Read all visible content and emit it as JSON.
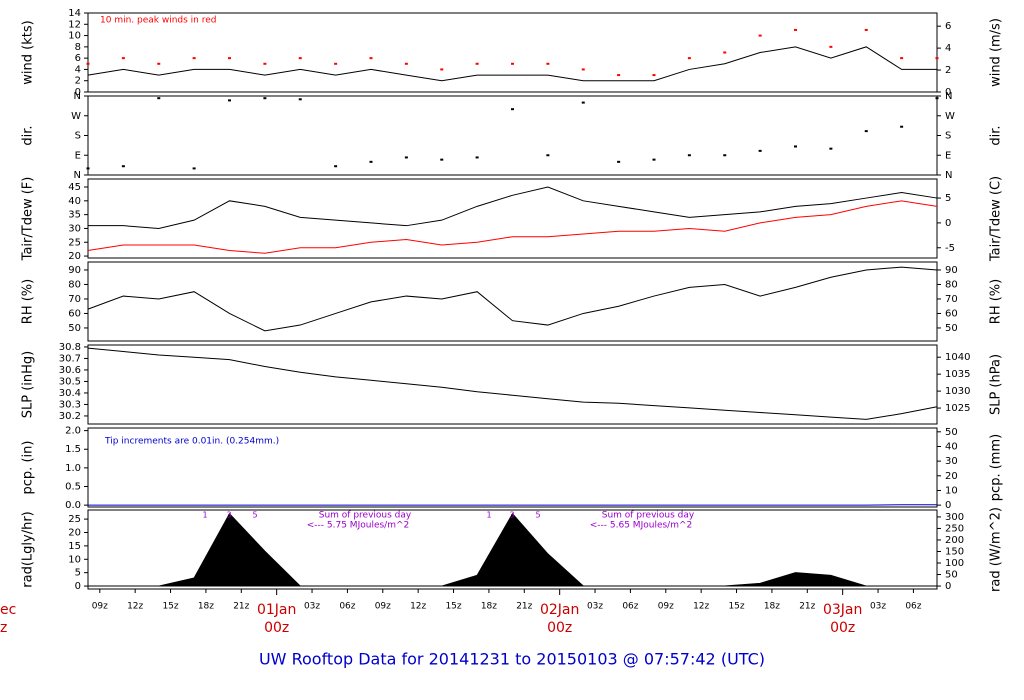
{
  "title": "UW Rooftop Data for 20141231  to  20150103 @ 07:57:42  (UTC)",
  "chart_data": [
    {
      "type": "line",
      "ylabel": "wind (kts)",
      "y2label": "wind (m/s)",
      "annotations": [
        "10 min. peak winds in red"
      ],
      "xlim": [
        8,
        80
      ],
      "x": [
        8,
        11,
        14,
        17,
        20,
        23,
        26,
        29,
        32,
        35,
        38,
        41,
        44,
        47,
        50,
        53,
        56,
        59,
        62,
        65,
        68,
        71,
        74,
        77,
        80
      ],
      "ylim": [
        0,
        14
      ],
      "yticks": [
        0,
        2,
        4,
        6,
        8,
        10,
        12,
        14
      ],
      "y2lim": [
        0,
        7.2
      ],
      "y2ticks": [
        0,
        2,
        4,
        6
      ],
      "series": [
        {
          "color": "#000000",
          "mode": "line",
          "values": [
            3,
            4,
            3,
            4,
            4,
            3,
            4,
            3,
            4,
            3,
            2,
            3,
            3,
            3,
            2,
            2,
            2,
            4,
            5,
            7,
            8,
            6,
            8,
            4,
            4
          ]
        },
        {
          "color": "#ff0000",
          "mode": "markers",
          "values": [
            5,
            6,
            5,
            6,
            6,
            5,
            6,
            5,
            6,
            5,
            4,
            5,
            5,
            5,
            4,
            3,
            3,
            6,
            7,
            10,
            11,
            8,
            11,
            6,
            6
          ]
        }
      ]
    },
    {
      "type": "scatter",
      "ylabel": "dir.",
      "y2label": "dir.",
      "xlim": [
        8,
        80
      ],
      "x": [
        8,
        11,
        14,
        17,
        20,
        23,
        26,
        29,
        32,
        35,
        38,
        41,
        44,
        47,
        50,
        53,
        56,
        59,
        62,
        65,
        68,
        71,
        74,
        77,
        80
      ],
      "ylim": [
        0,
        360
      ],
      "yticks": [
        {
          "value": 0,
          "label": "N"
        },
        {
          "value": 90,
          "label": "E"
        },
        {
          "value": 180,
          "label": "S"
        },
        {
          "value": 270,
          "label": "W"
        },
        {
          "value": 360,
          "label": "N"
        }
      ],
      "y2lim": [
        0,
        360
      ],
      "y2ticks": [
        {
          "value": 0,
          "label": "N"
        },
        {
          "value": 90,
          "label": "E"
        },
        {
          "value": 180,
          "label": "S"
        },
        {
          "value": 270,
          "label": "W"
        },
        {
          "value": 360,
          "label": "N"
        }
      ],
      "series": [
        {
          "color": "#000000",
          "mode": "markers",
          "values": [
            30,
            40,
            350,
            30,
            340,
            350,
            345,
            40,
            60,
            80,
            70,
            80,
            300,
            90,
            330,
            60,
            70,
            90,
            90,
            110,
            130,
            120,
            200,
            220,
            350
          ]
        }
      ]
    },
    {
      "type": "line",
      "ylabel": "Tair/Tdew (F)",
      "y2label": "Tair/Tdew (C)",
      "xlim": [
        8,
        80
      ],
      "x": [
        8,
        11,
        14,
        17,
        20,
        23,
        26,
        29,
        32,
        35,
        38,
        41,
        44,
        47,
        50,
        53,
        56,
        59,
        62,
        65,
        68,
        71,
        74,
        77,
        80
      ],
      "ylim": [
        19.3,
        47.9
      ],
      "yticks": [
        20,
        25,
        30,
        35,
        40,
        45
      ],
      "y2lim": [
        -7.06,
        8.83
      ],
      "y2ticks": [
        -5,
        0,
        5
      ],
      "series": [
        {
          "color": "#000000",
          "mode": "line",
          "values": [
            31,
            31,
            30,
            33,
            40,
            38,
            34,
            33,
            32,
            31,
            33,
            38,
            42,
            45,
            40,
            38,
            36,
            34,
            35,
            36,
            38,
            39,
            41,
            43,
            41
          ]
        },
        {
          "color": "#ff0000",
          "mode": "line",
          "values": [
            22,
            24,
            24,
            24,
            22,
            21,
            23,
            23,
            25,
            26,
            24,
            25,
            27,
            27,
            28,
            29,
            29,
            30,
            29,
            32,
            34,
            35,
            38,
            40,
            38
          ]
        }
      ]
    },
    {
      "type": "line",
      "ylabel": "RH (%)",
      "y2label": "RH (%)",
      "xlim": [
        8,
        80
      ],
      "x": [
        8,
        11,
        14,
        17,
        20,
        23,
        26,
        29,
        32,
        35,
        38,
        41,
        44,
        47,
        50,
        53,
        56,
        59,
        62,
        65,
        68,
        71,
        74,
        77,
        80
      ],
      "ylim": [
        41,
        95.5
      ],
      "yticks": [
        50,
        60,
        70,
        80,
        90
      ],
      "y2lim": [
        41,
        95.5
      ],
      "y2ticks": [
        50,
        60,
        70,
        80,
        90
      ],
      "series": [
        {
          "color": "#000000",
          "mode": "line",
          "values": [
            63,
            72,
            70,
            75,
            60,
            48,
            52,
            60,
            68,
            72,
            70,
            75,
            55,
            52,
            60,
            65,
            72,
            78,
            80,
            72,
            78,
            85,
            90,
            92,
            90
          ]
        }
      ]
    },
    {
      "type": "line",
      "ylabel": "SLP (inHg)",
      "y2label": "SLP (hPa)",
      "xlim": [
        8,
        80
      ],
      "x": [
        8,
        11,
        14,
        17,
        20,
        23,
        26,
        29,
        32,
        35,
        38,
        41,
        44,
        47,
        50,
        53,
        56,
        59,
        62,
        65,
        68,
        71,
        74,
        77,
        80
      ],
      "ylim": [
        30.13,
        30.817
      ],
      "yticks": [
        30.2,
        30.3,
        30.4,
        30.5,
        30.6,
        30.7,
        30.8
      ],
      "y2lim": [
        1020.3,
        1043.6
      ],
      "y2ticks": [
        1025,
        1030,
        1035,
        1040
      ],
      "series": [
        {
          "color": "#000000",
          "mode": "line",
          "values": [
            30.79,
            30.76,
            30.73,
            30.71,
            30.69,
            30.63,
            30.58,
            30.54,
            30.51,
            30.48,
            30.45,
            30.41,
            30.38,
            30.35,
            30.32,
            30.31,
            30.29,
            30.27,
            30.25,
            30.23,
            30.21,
            30.19,
            30.17,
            30.22,
            30.28
          ]
        }
      ]
    },
    {
      "type": "line",
      "ylabel": "pcp. (in)",
      "y2label": "pcp. (mm)",
      "annotations": [
        "Tip increments are 0.01in. (0.254mm.)"
      ],
      "xlim": [
        8,
        80
      ],
      "x": [
        8,
        11,
        14,
        17,
        20,
        23,
        26,
        29,
        32,
        35,
        38,
        41,
        44,
        47,
        50,
        53,
        56,
        59,
        62,
        65,
        68,
        71,
        74,
        77,
        80
      ],
      "ylim": [
        -0.05,
        2.07
      ],
      "yticks": [
        {
          "value": 0,
          "label": "0.0"
        },
        {
          "value": 0.5,
          "label": "0.5"
        },
        {
          "value": 1,
          "label": "1.0"
        },
        {
          "value": 1.5,
          "label": "1.5"
        },
        {
          "value": 2,
          "label": "2.0"
        }
      ],
      "y2lim": [
        -1.27,
        52.6
      ],
      "y2ticks": [
        0,
        10,
        20,
        30,
        40,
        50
      ],
      "series": [
        {
          "color": "#0000cc",
          "mode": "line",
          "values": [
            0,
            0,
            0,
            0,
            0,
            0,
            0,
            0,
            0,
            0,
            0,
            0,
            0,
            0,
            0,
            0,
            0,
            0,
            0,
            0,
            0,
            0,
            0,
            0.01,
            0.01
          ]
        }
      ]
    },
    {
      "type": "area",
      "ylabel": "rad(Lgly/hr)",
      "y2label": "rad (W/m^2)",
      "annotations": [
        "1",
        "3",
        "5",
        "Sum of previous day",
        "<--- 5.75 MJoules/m^2",
        "1",
        "3",
        "5",
        "Sum of previous day",
        "<--- 5.65 MJoules/m^2"
      ],
      "xlim": [
        8,
        80
      ],
      "x": [
        8,
        11,
        14,
        17,
        20,
        23,
        26,
        29,
        32,
        35,
        38,
        41,
        44,
        47,
        50,
        53,
        56,
        59,
        62,
        65,
        68,
        71,
        74,
        77,
        80
      ],
      "ylim": [
        -1.1,
        28.4
      ],
      "yticks": [
        0,
        5,
        10,
        15,
        20,
        25
      ],
      "y2lim": [
        -12.8,
        330
      ],
      "y2ticks": [
        0,
        50,
        100,
        150,
        200,
        250,
        300
      ],
      "xticks": [
        {
          "value": 9,
          "label": "09z"
        },
        {
          "value": 12,
          "label": "12z"
        },
        {
          "value": 15,
          "label": "15z"
        },
        {
          "value": 18,
          "label": "18z"
        },
        {
          "value": 21,
          "label": "21z"
        },
        {
          "value": 27,
          "label": "03z"
        },
        {
          "value": 30,
          "label": "06z"
        },
        {
          "value": 33,
          "label": "09z"
        },
        {
          "value": 36,
          "label": "12z"
        },
        {
          "value": 39,
          "label": "15z"
        },
        {
          "value": 42,
          "label": "18z"
        },
        {
          "value": 45,
          "label": "21z"
        },
        {
          "value": 51,
          "label": "03z"
        },
        {
          "value": 54,
          "label": "06z"
        },
        {
          "value": 57,
          "label": "09z"
        },
        {
          "value": 60,
          "label": "12z"
        },
        {
          "value": 63,
          "label": "15z"
        },
        {
          "value": 66,
          "label": "18z"
        },
        {
          "value": 69,
          "label": "21z"
        },
        {
          "value": 75,
          "label": "03z"
        },
        {
          "value": 78,
          "label": "06z"
        }
      ],
      "day_labels": [
        {
          "value": 24,
          "label": "01Jan",
          "hour": "00z"
        },
        {
          "value": 48,
          "label": "02Jan",
          "hour": "00z"
        },
        {
          "value": 72,
          "label": "03Jan",
          "hour": "00z"
        }
      ],
      "cut_labels": [
        "ec",
        "z"
      ],
      "series": [
        {
          "color": "#000000",
          "mode": "area",
          "values": [
            0,
            0,
            0,
            3,
            27,
            13,
            0,
            0,
            0,
            0,
            0,
            4,
            27,
            12,
            0,
            0,
            0,
            0,
            0,
            1,
            5,
            4,
            0,
            0,
            0
          ]
        }
      ]
    }
  ]
}
